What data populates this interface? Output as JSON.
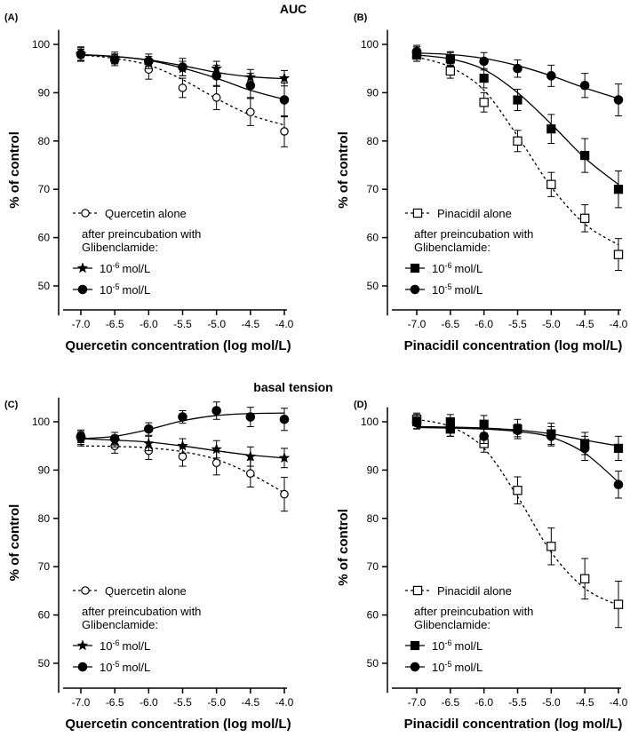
{
  "figure": {
    "section_titles": [
      "AUC",
      "basal tension"
    ]
  },
  "chart_data": [
    {
      "type": "line",
      "panel_label": "(A)",
      "xlabel": "Quercetin concentration (log mol/L)",
      "ylabel": "% of control",
      "xlim": [
        -7.0,
        -4.0
      ],
      "ylim": [
        45,
        103
      ],
      "x_ticks": [
        -7.0,
        -6.5,
        -6.0,
        -5.5,
        -5.0,
        -4.5,
        -4.0
      ],
      "x_tick_labels": [
        "-7.0",
        "-6.5",
        "-6.0",
        "-5.5",
        "-5.0",
        "-4.5",
        "-4.0"
      ],
      "y_ticks": [
        50,
        60,
        70,
        80,
        90,
        100
      ],
      "y_tick_labels": [
        "50",
        "60",
        "70",
        "80",
        "90",
        "100"
      ],
      "x": [
        -7.0,
        -6.5,
        -6.0,
        -5.5,
        -5.0,
        -4.5,
        -4.0
      ],
      "legend": {
        "placement": "bottom-left",
        "subheading": "after preincubation with Glibenclamide:",
        "subheading_lines": [
          "after preincubation with",
          "Glibenclamide:"
        ]
      },
      "series": [
        {
          "name": "Quercetin alone",
          "marker": "open-circle",
          "line": "dashed",
          "values": [
            97.8,
            97.2,
            94.8,
            91.0,
            89.0,
            86.0,
            82.0
          ],
          "errors": [
            1.2,
            1.2,
            2.0,
            2.0,
            2.5,
            2.8,
            3.2
          ],
          "fit": [
            97.8,
            97.1,
            95.7,
            92.7,
            88.8,
            85.4,
            83.3
          ]
        },
        {
          "name": "10-6 mol/L",
          "exp_base": "10",
          "exp": "-6",
          "unit": "mol/L",
          "marker": "star",
          "line": "solid",
          "values": [
            98.0,
            97.0,
            96.5,
            95.0,
            95.0,
            93.2,
            93.0
          ],
          "errors": [
            1.3,
            1.0,
            1.0,
            1.5,
            1.5,
            1.6,
            1.6
          ],
          "fit": [
            97.8,
            97.5,
            96.8,
            95.6,
            94.2,
            93.3,
            92.9
          ]
        },
        {
          "name": "10-5 mol/L",
          "exp_base": "10",
          "exp": "-5",
          "unit": "mol/L",
          "marker": "filled-circle",
          "line": "solid",
          "values": [
            98.0,
            96.8,
            96.5,
            95.3,
            93.5,
            91.5,
            88.5
          ],
          "errors": [
            1.5,
            1.2,
            1.5,
            1.8,
            2.2,
            2.5,
            3.5
          ],
          "fit": [
            97.9,
            97.5,
            96.7,
            95.1,
            93.0,
            90.5,
            88.6
          ]
        }
      ]
    },
    {
      "type": "line",
      "panel_label": "(B)",
      "xlabel": "Pinacidil concentration (log mol/L)",
      "ylabel": "% of control",
      "xlim": [
        -7.0,
        -4.0
      ],
      "ylim": [
        45,
        103
      ],
      "x_ticks": [
        -7.0,
        -6.5,
        -6.0,
        -5.5,
        -5.0,
        -4.5,
        -4.0
      ],
      "x_tick_labels": [
        "-7.0",
        "-6.5",
        "-6.0",
        "-5.5",
        "-5.0",
        "-4.5",
        "-4.0"
      ],
      "y_ticks": [
        50,
        60,
        70,
        80,
        90,
        100
      ],
      "y_tick_labels": [
        "50",
        "60",
        "70",
        "80",
        "90",
        "100"
      ],
      "x": [
        -7.0,
        -6.5,
        -6.0,
        -5.5,
        -5.0,
        -4.5,
        -4.0
      ],
      "legend": {
        "placement": "bottom-left",
        "subheading": "after preincubation with Glibenclamide:",
        "subheading_lines": [
          "after preincubation with",
          "Glibenclamide:"
        ]
      },
      "series": [
        {
          "name": "Pinacidil alone",
          "marker": "open-square",
          "line": "dashed",
          "values": [
            97.8,
            94.5,
            88.0,
            80.0,
            71.0,
            64.0,
            56.5
          ],
          "errors": [
            1.3,
            1.5,
            2.0,
            2.2,
            2.5,
            2.8,
            3.3
          ],
          "fit": [
            97.4,
            95.3,
            90.5,
            81.0,
            70.5,
            62.8,
            58.5
          ]
        },
        {
          "name": "10-6 mol/L",
          "exp_base": "10",
          "exp": "-6",
          "unit": "mol/L",
          "marker": "filled-square",
          "line": "solid",
          "values": [
            98.0,
            97.0,
            93.0,
            88.5,
            82.5,
            77.0,
            70.0
          ],
          "errors": [
            1.5,
            1.5,
            2.0,
            2.2,
            3.0,
            3.5,
            3.8
          ],
          "fit": [
            97.8,
            97.0,
            94.8,
            90.0,
            83.5,
            76.5,
            71.0
          ]
        },
        {
          "name": "10-5 mol/L",
          "exp_base": "10",
          "exp": "-5",
          "unit": "mol/L",
          "marker": "filled-circle",
          "line": "solid",
          "values": [
            98.5,
            97.0,
            96.5,
            95.0,
            93.5,
            91.5,
            88.5
          ],
          "errors": [
            1.3,
            1.3,
            1.8,
            1.8,
            2.2,
            2.5,
            3.3
          ],
          "fit": [
            98.2,
            97.9,
            97.1,
            95.6,
            93.5,
            91.0,
            88.8
          ]
        }
      ]
    },
    {
      "type": "line",
      "panel_label": "(C)",
      "xlabel": "Quercetin concentration (log mol/L)",
      "ylabel": "% of control",
      "xlim": [
        -7.0,
        -4.0
      ],
      "ylim": [
        45,
        105
      ],
      "x_ticks": [
        -7.0,
        -6.5,
        -6.0,
        -5.5,
        -5.0,
        -4.5,
        -4.0
      ],
      "x_tick_labels": [
        "-7.0",
        "-6.5",
        "-6.0",
        "-5.5",
        "-5.0",
        "-4.5",
        "-4.0"
      ],
      "y_ticks": [
        50,
        60,
        70,
        80,
        90,
        100
      ],
      "y_tick_labels": [
        "50",
        "60",
        "70",
        "80",
        "90",
        "100"
      ],
      "x": [
        -7.0,
        -6.5,
        -6.0,
        -5.5,
        -5.0,
        -4.5,
        -4.0
      ],
      "legend": {
        "placement": "bottom-left",
        "subheading": "after preincubation with Glibenclamide:",
        "subheading_lines": [
          "after preincubation with",
          "Glibenclamide:"
        ]
      },
      "series": [
        {
          "name": "Quercetin alone",
          "marker": "open-circle",
          "line": "dashed",
          "values": [
            96.5,
            95.0,
            94.0,
            92.8,
            91.5,
            89.3,
            85.0
          ],
          "errors": [
            1.5,
            1.5,
            1.8,
            2.0,
            2.5,
            2.8,
            3.5
          ],
          "fit": [
            95.0,
            94.9,
            94.6,
            93.8,
            92.2,
            89.2,
            85.3
          ]
        },
        {
          "name": "10-6 mol/L",
          "exp_base": "10",
          "exp": "-6",
          "unit": "mol/L",
          "marker": "star",
          "line": "solid",
          "values": [
            96.5,
            96.0,
            95.5,
            95.0,
            94.3,
            92.8,
            92.5
          ],
          "errors": [
            1.2,
            1.2,
            1.5,
            1.5,
            1.8,
            2.0,
            2.0
          ],
          "fit": [
            96.5,
            96.2,
            95.8,
            95.0,
            94.0,
            93.1,
            92.5
          ]
        },
        {
          "name": "10-5 mol/L",
          "exp_base": "10",
          "exp": "-5",
          "unit": "mol/L",
          "marker": "filled-circle",
          "line": "solid",
          "values": [
            97.0,
            96.5,
            98.5,
            101.0,
            102.3,
            101.0,
            100.5
          ],
          "errors": [
            1.3,
            1.3,
            1.3,
            1.3,
            1.8,
            2.0,
            2.3
          ],
          "fit": [
            96.5,
            97.0,
            98.4,
            100.2,
            101.3,
            101.7,
            101.8
          ]
        }
      ]
    },
    {
      "type": "line",
      "panel_label": "(D)",
      "xlabel": "Pinacidil concentration (log mol/L)",
      "ylabel": "% of control",
      "xlim": [
        -7.0,
        -4.0
      ],
      "ylim": [
        45,
        103
      ],
      "x_ticks": [
        -7.0,
        -6.5,
        -6.0,
        -5.5,
        -5.0,
        -4.5,
        -4.0
      ],
      "x_tick_labels": [
        "-7.0",
        "-6.5",
        "-6.0",
        "-5.5",
        "-5.0",
        "-4.5",
        "-4.0"
      ],
      "y_ticks": [
        50,
        60,
        70,
        80,
        90,
        100
      ],
      "y_tick_labels": [
        "50",
        "60",
        "70",
        "80",
        "90",
        "100"
      ],
      "x": [
        -7.0,
        -6.5,
        -6.0,
        -5.5,
        -5.0,
        -4.5,
        -4.0
      ],
      "legend": {
        "placement": "bottom-left",
        "subheading": "after preincubation with Glibenclamide:",
        "subheading_lines": [
          "after preincubation with",
          "Glibenclamide:"
        ]
      },
      "series": [
        {
          "name": "Pinacidil alone",
          "marker": "open-square",
          "line": "dashed",
          "values": [
            100.5,
            98.5,
            95.5,
            85.8,
            74.2,
            67.5,
            62.2
          ],
          "errors": [
            1.3,
            1.5,
            1.8,
            2.8,
            3.8,
            4.2,
            4.8
          ],
          "fit": [
            100.5,
            99.0,
            94.5,
            84.5,
            73.0,
            65.5,
            62.0
          ]
        },
        {
          "name": "10-6 mol/L",
          "exp_base": "10",
          "exp": "-6",
          "unit": "mol/L",
          "marker": "filled-square",
          "line": "solid",
          "values": [
            100.0,
            100.0,
            99.5,
            98.5,
            97.5,
            95.5,
            94.5
          ],
          "errors": [
            1.5,
            1.5,
            1.8,
            2.0,
            2.2,
            2.3,
            2.5
          ],
          "fit": [
            99.0,
            98.9,
            98.7,
            98.3,
            97.5,
            96.2,
            95.0
          ]
        },
        {
          "name": "10-5 mol/L",
          "exp_base": "10",
          "exp": "-5",
          "unit": "mol/L",
          "marker": "filled-circle",
          "line": "solid",
          "values": [
            99.8,
            98.5,
            97.0,
            98.2,
            97.0,
            94.5,
            87.0
          ],
          "errors": [
            1.2,
            1.5,
            1.5,
            1.3,
            2.0,
            2.5,
            2.8
          ],
          "fit": [
            98.8,
            98.7,
            98.5,
            98.0,
            96.8,
            93.5,
            87.5
          ]
        }
      ]
    }
  ]
}
